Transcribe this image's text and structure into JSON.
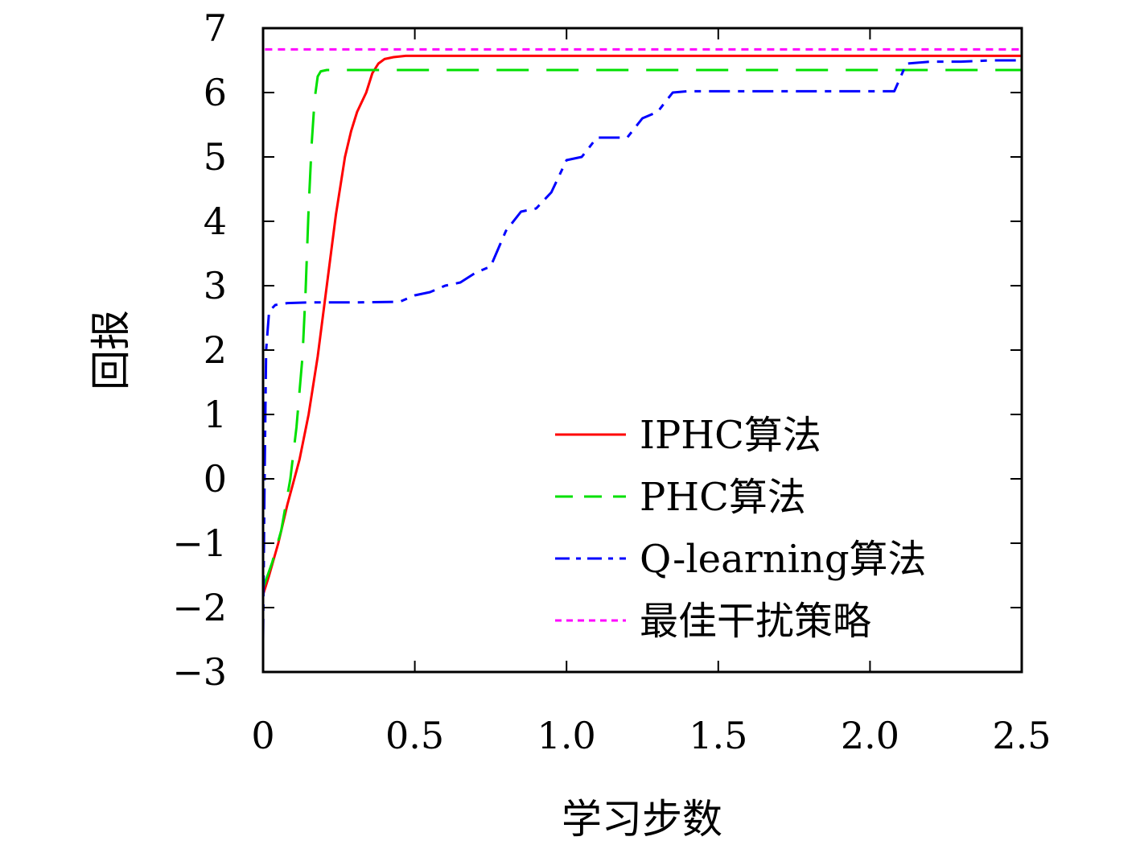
{
  "chart_data": {
    "type": "line",
    "title": "",
    "xlabel": "学习步数",
    "ylabel": "回报",
    "xlim": [
      0,
      2.5
    ],
    "ylim": [
      -3,
      7
    ],
    "xticks": [
      0,
      0.5,
      1.0,
      1.5,
      2.0,
      2.5
    ],
    "xtick_labels": [
      "0",
      "0.5",
      "1.0",
      "1.5",
      "2.0",
      "2.5"
    ],
    "yticks": [
      -3,
      -2,
      -1,
      0,
      1,
      2,
      3,
      4,
      5,
      6,
      7
    ],
    "ytick_labels": [
      "−3",
      "−2",
      "−1",
      "0",
      "1",
      "2",
      "3",
      "4",
      "5",
      "6",
      "7"
    ],
    "grid": false,
    "legend_position": "bottom-right",
    "series": [
      {
        "name": "IPHC算法",
        "color": "#ff0000",
        "style": "solid",
        "x": [
          0,
          0.02,
          0.05,
          0.08,
          0.12,
          0.15,
          0.18,
          0.21,
          0.24,
          0.27,
          0.29,
          0.31,
          0.34,
          0.36,
          0.38,
          0.4,
          0.43,
          0.47,
          0.6,
          1.0,
          1.5,
          2.0,
          2.5
        ],
        "y": [
          -1.8,
          -1.5,
          -1.0,
          -0.4,
          0.3,
          1.0,
          1.9,
          3.0,
          4.1,
          5.0,
          5.4,
          5.7,
          6.0,
          6.3,
          6.45,
          6.52,
          6.55,
          6.57,
          6.57,
          6.57,
          6.57,
          6.57,
          6.57
        ]
      },
      {
        "name": "PHC算法",
        "color": "#00e000",
        "style": "dash",
        "x": [
          0,
          0.03,
          0.06,
          0.09,
          0.11,
          0.13,
          0.14,
          0.15,
          0.16,
          0.17,
          0.18,
          0.19,
          0.21,
          0.25,
          0.5,
          1.0,
          1.5,
          2.0,
          2.5
        ],
        "y": [
          -1.7,
          -1.3,
          -0.8,
          0.0,
          0.8,
          1.9,
          2.9,
          4.2,
          5.2,
          5.9,
          6.25,
          6.33,
          6.35,
          6.35,
          6.35,
          6.35,
          6.35,
          6.35,
          6.35
        ]
      },
      {
        "name": "Q-learning算法",
        "color": "#0000ff",
        "style": "dashdot",
        "x": [
          0,
          0.005,
          0.01,
          0.02,
          0.04,
          0.08,
          0.15,
          0.3,
          0.45,
          0.5,
          0.55,
          0.6,
          0.65,
          0.7,
          0.75,
          0.8,
          0.85,
          0.9,
          0.95,
          1.0,
          1.05,
          1.1,
          1.15,
          1.2,
          1.25,
          1.3,
          1.35,
          1.4,
          1.5,
          1.8,
          2.08,
          2.12,
          2.2,
          2.3,
          2.4,
          2.5
        ],
        "y": [
          -2.5,
          0.0,
          2.0,
          2.6,
          2.7,
          2.73,
          2.74,
          2.74,
          2.75,
          2.85,
          2.9,
          3.0,
          3.05,
          3.2,
          3.3,
          3.85,
          4.15,
          4.2,
          4.45,
          4.95,
          5.0,
          5.3,
          5.3,
          5.3,
          5.6,
          5.7,
          6.0,
          6.02,
          6.02,
          6.02,
          6.02,
          6.45,
          6.48,
          6.48,
          6.5,
          6.5
        ]
      },
      {
        "name": "最佳干扰策略",
        "color": "#ff00ff",
        "style": "dot",
        "x": [
          0,
          0,
          2.5
        ],
        "y": [
          -2.5,
          6.67,
          6.67
        ]
      }
    ]
  }
}
